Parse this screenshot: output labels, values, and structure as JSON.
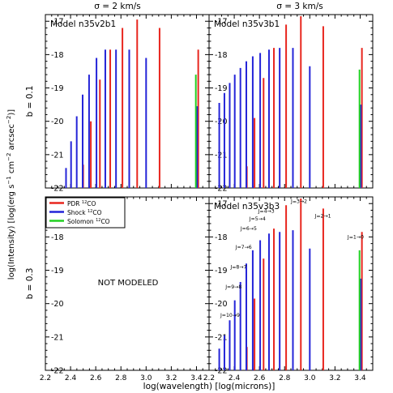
{
  "figure": {
    "ylabel_pre": "log(Intensity) [log(erg s",
    "ylabel_exp1": "−1",
    "ylabel_mid": " cm",
    "ylabel_exp2": "−2",
    "ylabel_mid2": " arcsec",
    "ylabel_exp3": "−2",
    "ylabel_post": ")]",
    "xlabel": "log(wavelength)  [log(microns)]",
    "col_titles": [
      "σ = 2 km/s",
      "σ = 3 km/s"
    ],
    "row_titles": [
      "b = 0.1",
      "b = 0.3"
    ],
    "not_modeled": "NOT MODELED",
    "xticks": [
      "2.2",
      "2.4",
      "2.6",
      "2.8",
      "3.0",
      "3.2",
      "3.4"
    ],
    "yticks": [
      "-17",
      "-18",
      "-19",
      "-20",
      "-21",
      "-22"
    ],
    "legend": [
      {
        "label": "PDR ",
        "sup": "12",
        "tail": "CO",
        "color": "#e8261e"
      },
      {
        "label": "Shock ",
        "sup": "12",
        "tail": "CO",
        "color": "#2424d8"
      },
      {
        "label": "Solomon ",
        "sup": "12",
        "tail": "CO",
        "color": "#22d022"
      }
    ],
    "colors": {
      "pdr": "#e8261e",
      "shock": "#2424d8",
      "solomon": "#22d022"
    }
  },
  "chart_data": [
    {
      "type": "bar",
      "panel": "top-left",
      "title": "Model n35v2b1",
      "xlim": [
        2.2,
        3.5
      ],
      "ylim": [
        -22,
        -16.8
      ],
      "series": [
        {
          "name": "PDR 12CO",
          "x": [
            2.5,
            2.561,
            2.633,
            2.715,
            2.812,
            2.929,
            3.107,
            3.414
          ],
          "values": [
            -21.3,
            -20.0,
            -18.75,
            -17.85,
            -17.2,
            -16.95,
            -17.2,
            -17.85
          ]
        },
        {
          "name": "Shock 12CO",
          "x": [
            2.364,
            2.404,
            2.449,
            2.496,
            2.547,
            2.606,
            2.676,
            2.761,
            2.866,
            3.0,
            3.405
          ],
          "values": [
            -21.4,
            -20.6,
            -19.85,
            -19.2,
            -18.6,
            -18.1,
            -17.85,
            -17.85,
            -17.85,
            -18.1,
            -19.55
          ]
        },
        {
          "name": "Solomon 12CO",
          "x": [
            3.395
          ],
          "values": [
            -18.6
          ]
        }
      ]
    },
    {
      "type": "bar",
      "panel": "top-right",
      "title": "Model n35v3b1",
      "xlim": [
        2.2,
        3.5
      ],
      "ylim": [
        -22,
        -16.8
      ],
      "series": [
        {
          "name": "PDR 12CO",
          "x": [
            2.5,
            2.561,
            2.633,
            2.715,
            2.812,
            2.929,
            3.107,
            3.414
          ],
          "values": [
            -21.35,
            -19.9,
            -18.7,
            -17.8,
            -17.1,
            -16.85,
            -17.15,
            -17.8
          ]
        },
        {
          "name": "Shock 12CO",
          "x": [
            2.281,
            2.322,
            2.364,
            2.404,
            2.449,
            2.496,
            2.547,
            2.606,
            2.676,
            2.761,
            2.866,
            3.0,
            3.405
          ],
          "values": [
            -19.45,
            -19.15,
            -18.85,
            -18.6,
            -18.4,
            -18.2,
            -18.05,
            -17.95,
            -17.85,
            -17.8,
            -17.8,
            -18.35,
            -19.5
          ]
        },
        {
          "name": "Solomon 12CO",
          "x": [
            3.395
          ],
          "values": [
            -18.45
          ]
        }
      ]
    },
    {
      "type": "bar",
      "panel": "bottom-right",
      "title": "Model n35v3b3",
      "xlim": [
        2.2,
        3.5
      ],
      "ylim": [
        -22,
        -16.8
      ],
      "series": [
        {
          "name": "PDR 12CO",
          "x": [
            2.5,
            2.561,
            2.633,
            2.715,
            2.812,
            2.929,
            3.107,
            3.414
          ],
          "values": [
            -21.3,
            -19.85,
            -18.65,
            -17.75,
            -17.05,
            -16.85,
            -17.15,
            -17.85
          ]
        },
        {
          "name": "Shock 12CO",
          "x": [
            2.281,
            2.322,
            2.364,
            2.404,
            2.449,
            2.496,
            2.547,
            2.606,
            2.676,
            2.761,
            2.866,
            3.0,
            3.405
          ],
          "values": [
            -21.35,
            -20.95,
            -20.5,
            -19.9,
            -19.35,
            -18.8,
            -18.4,
            -18.1,
            -17.9,
            -17.85,
            -17.8,
            -18.35,
            -19.25
          ]
        },
        {
          "name": "Solomon 12CO",
          "x": [
            3.395
          ],
          "values": [
            -18.4
          ]
        }
      ],
      "annotations": [
        {
          "text": "J=10→9",
          "x": 2.29,
          "y": -20.4
        },
        {
          "text": "J=9→8",
          "x": 2.33,
          "y": -19.55
        },
        {
          "text": "J=8→7",
          "x": 2.37,
          "y": -18.95
        },
        {
          "text": "J=7→6",
          "x": 2.41,
          "y": -18.35
        },
        {
          "text": "J=6→5",
          "x": 2.45,
          "y": -17.8
        },
        {
          "text": "J=5→4",
          "x": 2.52,
          "y": -17.5
        },
        {
          "text": "J=4→3",
          "x": 2.59,
          "y": -17.27
        },
        {
          "text": "J=3→2",
          "x": 2.85,
          "y": -16.98
        },
        {
          "text": "J=2→1",
          "x": 3.04,
          "y": -17.42
        },
        {
          "text": "J=1→0",
          "x": 3.3,
          "y": -18.05
        }
      ]
    }
  ]
}
